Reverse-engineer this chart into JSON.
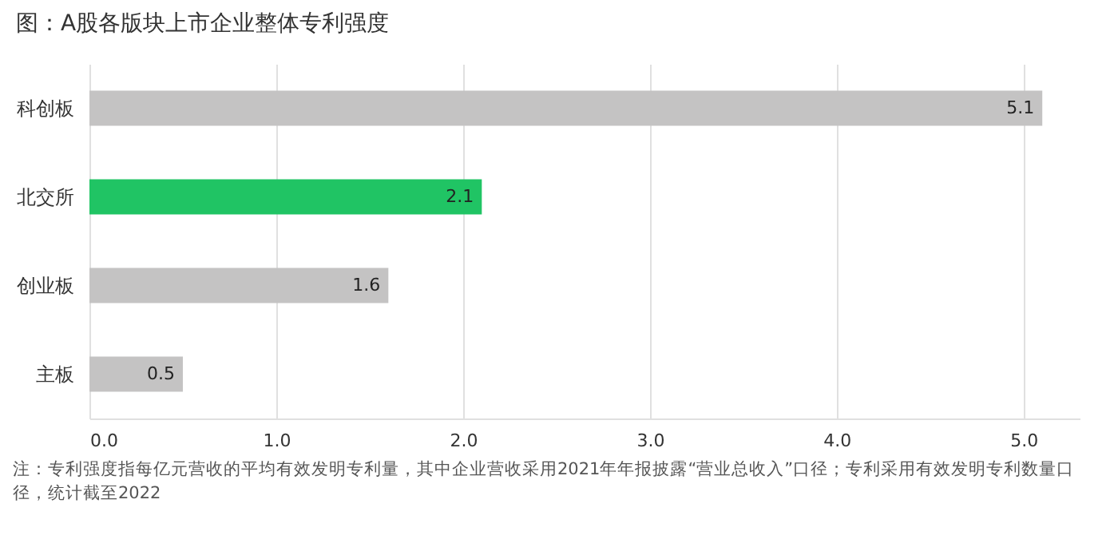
{
  "chart_data": {
    "type": "bar",
    "orientation": "horizontal",
    "title": "图：A股各版块上市企业整体专利强度",
    "categories": [
      "科创板",
      "北交所",
      "创业板",
      "主板"
    ],
    "values": [
      5.1,
      2.1,
      1.6,
      0.5
    ],
    "colors": [
      "#c4c3c3",
      "#20c464",
      "#c4c3c3",
      "#c4c3c3"
    ],
    "xlim": [
      0,
      5.3
    ],
    "xticks": [
      {
        "value": 0,
        "label": "0.0"
      },
      {
        "value": 1,
        "label": "1.0"
      },
      {
        "value": 2,
        "label": "2.0"
      },
      {
        "value": 3,
        "label": "3.0"
      },
      {
        "value": 4,
        "label": "4.0"
      },
      {
        "value": 5,
        "label": "5.0"
      }
    ],
    "grid": "x",
    "data_labels": true,
    "annotations": [
      "注：专利强度指每亿元营收的平均有效发明专利量，其中企业营收采用2021年年报披露“营业总收入”口径；专利采用有效发明专利数量口径，统计截至2022"
    ]
  }
}
